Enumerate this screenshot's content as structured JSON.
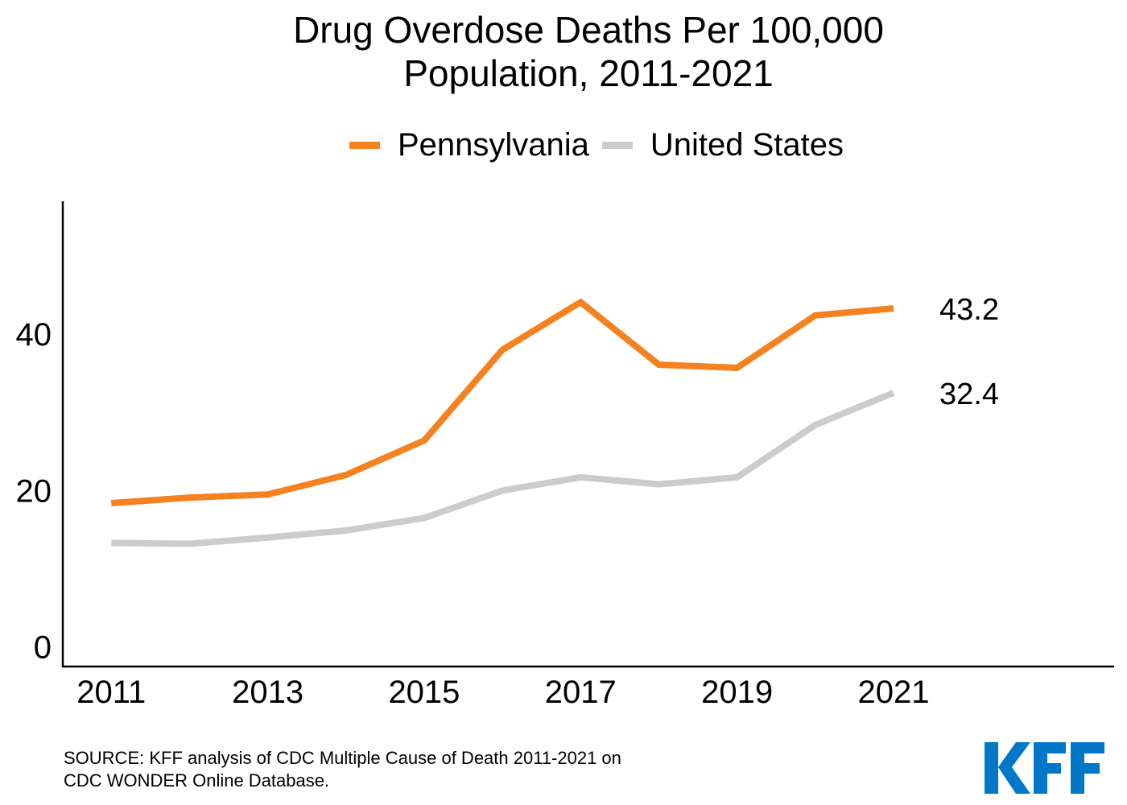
{
  "chart_data": {
    "type": "line",
    "title": "Drug Overdose Deaths Per 100,000 Population, 2011-2021",
    "title_lines": [
      "Drug Overdose Deaths Per 100,000",
      "Population, 2011-2021"
    ],
    "xlabel": "",
    "ylabel": "",
    "x": [
      2011,
      2012,
      2013,
      2014,
      2015,
      2016,
      2017,
      2018,
      2019,
      2020,
      2021
    ],
    "x_tick_labels": [
      "2011",
      "2013",
      "2015",
      "2017",
      "2019",
      "2021"
    ],
    "x_ticks": [
      2011,
      2013,
      2015,
      2017,
      2019,
      2021
    ],
    "y_ticks": [
      0,
      20,
      40
    ],
    "y_tick_labels": [
      "0",
      "20",
      "40"
    ],
    "xlim": [
      2010.38,
      2023.82
    ],
    "ylim": [
      -2.6,
      56.9
    ],
    "grid": false,
    "legend_position": "top-center",
    "series": [
      {
        "name": "Pennsylvania",
        "color": "#F58220",
        "values": [
          18.3,
          19.0,
          19.4,
          21.9,
          26.3,
          37.9,
          44.0,
          36.0,
          35.6,
          42.3,
          43.2
        ],
        "end_label": "43.2"
      },
      {
        "name": "United States",
        "color": "#CCCCCC",
        "values": [
          13.2,
          13.1,
          13.9,
          14.8,
          16.4,
          19.9,
          21.6,
          20.7,
          21.6,
          28.3,
          32.4
        ],
        "end_label": "32.4"
      }
    ]
  },
  "source": {
    "line1": "SOURCE: KFF analysis of CDC Multiple Cause of Death 2011-2021 on",
    "line2": "CDC WONDER Online Database."
  },
  "logo": {
    "text": "KFF",
    "color": "#0077C8"
  }
}
